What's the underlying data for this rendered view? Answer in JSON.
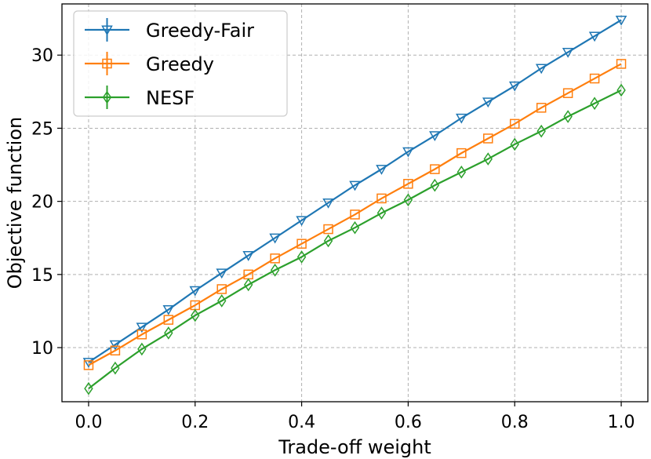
{
  "chart_data": {
    "type": "line",
    "xlabel": "Trade-off weight",
    "ylabel": "Objective function",
    "xlim": [
      -0.05,
      1.05
    ],
    "ylim": [
      6.3,
      33.5
    ],
    "xticks": [
      0.0,
      0.2,
      0.4,
      0.6,
      0.8,
      1.0
    ],
    "xtick_labels": [
      "0.0",
      "0.2",
      "0.4",
      "0.6",
      "0.8",
      "1.0"
    ],
    "yticks": [
      10,
      15,
      20,
      25,
      30
    ],
    "ytick_labels": [
      "10",
      "15",
      "20",
      "25",
      "30"
    ],
    "grid": true,
    "legend_position": "top-left",
    "x": [
      0.0,
      0.05,
      0.1,
      0.15,
      0.2,
      0.25,
      0.3,
      0.35,
      0.4,
      0.45,
      0.5,
      0.55,
      0.6,
      0.65,
      0.7,
      0.75,
      0.8,
      0.85,
      0.9,
      0.95,
      1.0
    ],
    "series": [
      {
        "name": "Greedy-Fair",
        "color": "#1f77b4",
        "marker": "triangle-down",
        "values": [
          9.0,
          10.2,
          11.4,
          12.6,
          13.9,
          15.1,
          16.3,
          17.5,
          18.7,
          19.9,
          21.1,
          22.2,
          23.4,
          24.5,
          25.7,
          26.8,
          27.9,
          29.1,
          30.2,
          31.3,
          32.4
        ]
      },
      {
        "name": "Greedy",
        "color": "#ff7f0e",
        "marker": "square",
        "values": [
          8.8,
          9.8,
          10.9,
          11.9,
          12.9,
          14.0,
          15.0,
          16.1,
          17.1,
          18.1,
          19.1,
          20.2,
          21.2,
          22.2,
          23.3,
          24.3,
          25.3,
          26.4,
          27.4,
          28.4,
          29.4
        ]
      },
      {
        "name": "NESF",
        "color": "#2ca02c",
        "marker": "diamond",
        "values": [
          7.2,
          8.6,
          9.9,
          11.0,
          12.2,
          13.2,
          14.3,
          15.3,
          16.2,
          17.3,
          18.2,
          19.2,
          20.1,
          21.1,
          22.0,
          22.9,
          23.9,
          24.8,
          25.8,
          26.7,
          27.6
        ]
      }
    ]
  }
}
